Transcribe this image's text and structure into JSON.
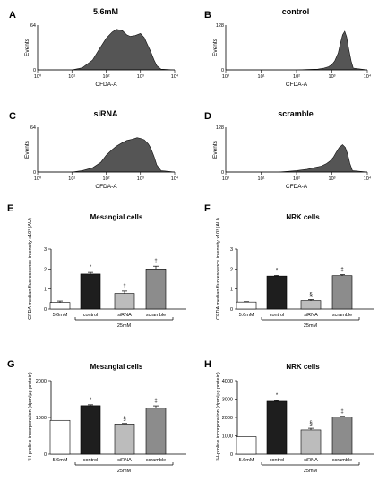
{
  "chart_data": [
    {
      "panel": "A",
      "type": "area",
      "title": "5.6mM",
      "xlabel": "CFDA-A",
      "ylabel": "Events",
      "x_scale": "log",
      "xlim": [
        1,
        10000
      ],
      "ylim": [
        0,
        64
      ],
      "x_tick_labels": [
        "10⁰",
        "10¹",
        "10²",
        "10³",
        "10⁴"
      ],
      "y_tick_labels": [
        "0",
        "64"
      ],
      "x": [
        1,
        10,
        20,
        40,
        60,
        100,
        150,
        200,
        300,
        400,
        500,
        700,
        1000,
        1300,
        1600,
        2000,
        2500,
        3000,
        4000,
        10000
      ],
      "y": [
        0,
        0,
        3,
        14,
        28,
        45,
        54,
        58,
        56,
        50,
        48,
        49,
        52,
        46,
        36,
        26,
        14,
        6,
        1,
        0
      ],
      "fill": "#555555"
    },
    {
      "panel": "B",
      "type": "area",
      "title": "control",
      "xlabel": "CFDA-A",
      "ylabel": "Events",
      "x_scale": "log",
      "xlim": [
        1,
        10000
      ],
      "ylim": [
        0,
        128
      ],
      "x_tick_labels": [
        "10⁰",
        "10¹",
        "10²",
        "10³",
        "10⁴"
      ],
      "y_tick_labels": [
        "0",
        "128"
      ],
      "x": [
        1,
        100,
        200,
        400,
        600,
        800,
        1000,
        1200,
        1500,
        1700,
        2000,
        2300,
        2600,
        3000,
        3500,
        4000,
        10000
      ],
      "y": [
        0,
        0,
        1,
        2,
        5,
        9,
        15,
        25,
        48,
        72,
        100,
        110,
        95,
        60,
        25,
        5,
        0
      ],
      "fill": "#555555"
    },
    {
      "panel": "C",
      "type": "area",
      "title": "siRNA",
      "xlabel": "CFDA-A",
      "ylabel": "Events",
      "x_scale": "log",
      "xlim": [
        1,
        10000
      ],
      "ylim": [
        0,
        64
      ],
      "x_tick_labels": [
        "10⁰",
        "10¹",
        "10²",
        "10³",
        "10⁴"
      ],
      "y_tick_labels": [
        "0",
        "64"
      ],
      "x": [
        1,
        10,
        20,
        40,
        70,
        100,
        150,
        200,
        300,
        400,
        600,
        800,
        1000,
        1300,
        1700,
        2000,
        2500,
        3000,
        4000,
        10000
      ],
      "y": [
        0,
        0,
        2,
        6,
        14,
        24,
        32,
        37,
        42,
        45,
        47,
        49,
        48,
        46,
        40,
        34,
        22,
        10,
        2,
        0
      ],
      "fill": "#555555"
    },
    {
      "panel": "D",
      "type": "area",
      "title": "scramble",
      "xlabel": "CFDA-A",
      "ylabel": "Events",
      "x_scale": "log",
      "xlim": [
        1,
        10000
      ],
      "ylim": [
        0,
        128
      ],
      "x_tick_labels": [
        "10⁰",
        "10¹",
        "10²",
        "10³",
        "10⁴"
      ],
      "y_tick_labels": [
        "0",
        "128"
      ],
      "x": [
        1,
        30,
        60,
        100,
        200,
        300,
        500,
        700,
        900,
        1100,
        1300,
        1600,
        2000,
        2400,
        2800,
        3200,
        3800,
        10000
      ],
      "y": [
        0,
        0,
        2,
        4,
        8,
        12,
        17,
        24,
        32,
        42,
        55,
        70,
        78,
        70,
        50,
        25,
        4,
        0
      ],
      "fill": "#555555"
    },
    {
      "panel": "E",
      "type": "bar",
      "title": "Mesangial cells",
      "ylabel": "CFDA median fluorescence intensity x10³ (AU)",
      "ylim": [
        0,
        3
      ],
      "y_tick_labels": [
        "0",
        "1",
        "2",
        "3"
      ],
      "categories": [
        "5.6mM",
        "control",
        "siRNA",
        "scramble"
      ],
      "values": [
        0.33,
        1.75,
        0.78,
        2.0
      ],
      "errors": [
        0.07,
        0.08,
        0.12,
        0.14
      ],
      "bar_colors": [
        "#ffffff",
        "#1e1e1e",
        "#bcbcbc",
        "#8c8c8c"
      ],
      "markers": [
        "",
        "*",
        "†",
        "‡"
      ],
      "group_label": "25mM"
    },
    {
      "panel": "F",
      "type": "bar",
      "title": "NRK cells",
      "ylabel": "CFDA median fluorescence intensity x10³ (AU)",
      "ylim": [
        0,
        3
      ],
      "y_tick_labels": [
        "0",
        "1",
        "2",
        "3"
      ],
      "categories": [
        "5.6mM",
        "control",
        "siRNA",
        "scramble"
      ],
      "values": [
        0.35,
        1.65,
        0.42,
        1.67
      ],
      "errors": [
        0.02,
        0.03,
        0.05,
        0.05
      ],
      "bar_colors": [
        "#ffffff",
        "#1e1e1e",
        "#bcbcbc",
        "#8c8c8c"
      ],
      "markers": [
        "",
        "*",
        "§",
        "‡"
      ],
      "group_label": "25mM"
    },
    {
      "panel": "G",
      "type": "bar",
      "title": "Mesangial cells",
      "ylabel": "³H-proline incorporation (dpm/µg protein)",
      "ylim": [
        0,
        2000
      ],
      "y_tick_labels": [
        "0",
        "1000",
        "2000"
      ],
      "categories": [
        "5.6mM",
        "control",
        "siRNA",
        "scramble"
      ],
      "values": [
        920,
        1320,
        820,
        1250
      ],
      "errors": [
        0,
        25,
        15,
        65
      ],
      "bar_colors": [
        "#ffffff",
        "#1e1e1e",
        "#bcbcbc",
        "#8c8c8c"
      ],
      "markers": [
        "",
        "*",
        "§",
        "‡"
      ],
      "group_label": "25mM"
    },
    {
      "panel": "H",
      "type": "bar",
      "title": "NRK cells",
      "ylabel": "³H-proline incorporation (dpm/µg protein)",
      "ylim": [
        0,
        4000
      ],
      "y_tick_labels": [
        "0",
        "1000",
        "2000",
        "3000",
        "4000"
      ],
      "categories": [
        "5.6mM",
        "control",
        "siRNA",
        "scramble"
      ],
      "values": [
        950,
        2880,
        1320,
        2030
      ],
      "errors": [
        0,
        40,
        90,
        30
      ],
      "bar_colors": [
        "#ffffff",
        "#1e1e1e",
        "#bcbcbc",
        "#8c8c8c"
      ],
      "markers": [
        "",
        "*",
        "§",
        "‡"
      ],
      "group_label": "25mM"
    }
  ]
}
